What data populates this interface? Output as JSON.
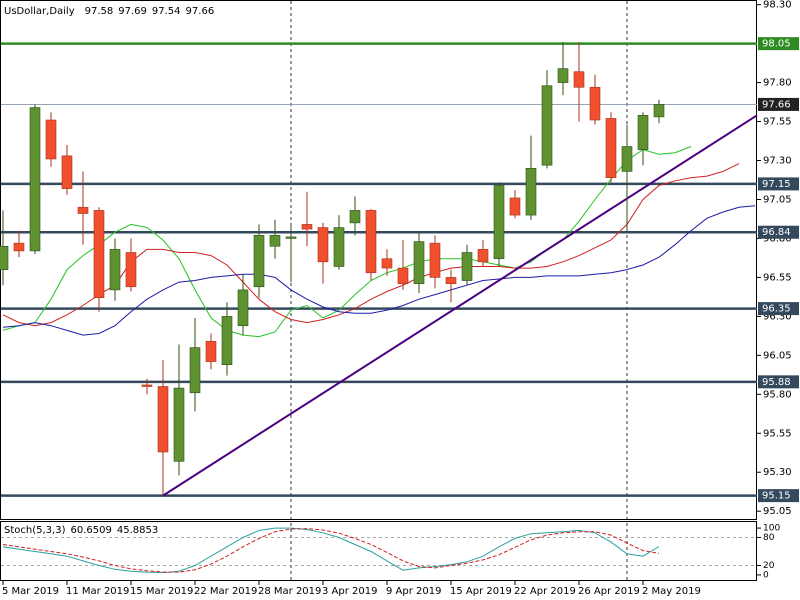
{
  "chart_data": [
    {
      "type": "candlestick",
      "title": "UsDollar,Daily",
      "categories": [
        "5 Mar 2019",
        null,
        null,
        null,
        "11 Mar 2019",
        null,
        null,
        null,
        "15 Mar 2019",
        null,
        null,
        null,
        "22 Mar 2019",
        null,
        null,
        null,
        "28 Mar 2019",
        null,
        null,
        null,
        "3 Apr 2019",
        null,
        null,
        null,
        "9 Apr 2019",
        null,
        null,
        null,
        "15 Apr 2019",
        null,
        null,
        null,
        "22 Apr 2019",
        null,
        null,
        null,
        "26 Apr 2019",
        null,
        null,
        null,
        "2 May 2019",
        null,
        null,
        null,
        null,
        null,
        null,
        null
      ],
      "open": [
        96.6,
        96.77,
        96.72,
        97.56,
        97.33,
        97.0,
        96.98,
        96.47,
        96.71,
        95.86,
        95.85,
        95.37,
        95.81,
        96.14,
        95.99,
        96.24,
        96.49,
        96.75,
        96.8,
        96.89,
        96.87,
        96.62,
        96.9,
        96.98,
        96.67,
        96.61,
        96.51,
        96.77,
        96.55,
        96.53,
        96.73,
        96.67,
        97.06,
        96.95,
        97.27,
        97.8,
        97.87,
        97.77,
        97.57,
        97.23,
        97.37,
        97.58,
        null,
        null,
        null,
        null,
        null,
        null
      ],
      "high": [
        96.98,
        96.85,
        97.66,
        97.61,
        97.4,
        97.23,
        97.0,
        96.8,
        96.8,
        95.9,
        96.02,
        96.12,
        96.29,
        96.19,
        96.39,
        96.57,
        96.89,
        96.92,
        96.88,
        97.1,
        96.9,
        96.95,
        97.07,
        96.99,
        96.73,
        96.79,
        96.84,
        96.82,
        96.6,
        96.76,
        96.79,
        97.16,
        97.11,
        97.46,
        97.88,
        98.06,
        98.06,
        97.85,
        97.61,
        97.53,
        97.61,
        97.69,
        null,
        null,
        null,
        null,
        null,
        null
      ],
      "low": [
        96.5,
        96.68,
        96.7,
        97.26,
        97.08,
        96.76,
        96.33,
        96.4,
        96.46,
        95.8,
        95.15,
        95.28,
        95.69,
        95.96,
        95.92,
        96.18,
        96.42,
        96.67,
        96.52,
        96.75,
        96.51,
        96.6,
        96.82,
        96.53,
        96.56,
        96.47,
        96.45,
        96.48,
        96.39,
        96.5,
        96.62,
        96.62,
        96.93,
        96.92,
        97.25,
        97.72,
        97.55,
        97.53,
        97.16,
        96.85,
        97.27,
        97.54,
        null,
        null,
        null,
        null,
        null,
        null
      ],
      "close": [
        96.75,
        96.72,
        97.64,
        97.31,
        97.12,
        96.96,
        96.42,
        96.73,
        96.49,
        95.85,
        95.43,
        95.84,
        96.1,
        96.01,
        96.3,
        96.47,
        96.82,
        96.82,
        96.81,
        96.86,
        96.65,
        96.87,
        96.98,
        96.58,
        96.61,
        96.51,
        96.78,
        96.55,
        96.51,
        96.71,
        96.65,
        97.14,
        96.95,
        97.25,
        97.78,
        97.89,
        97.77,
        97.56,
        97.19,
        97.39,
        97.59,
        97.66,
        null,
        null,
        null,
        null,
        null,
        null
      ],
      "up_color": "#5e9130",
      "down_color": "#f0502e",
      "lines": [
        {
          "color": "#22c322",
          "values": [
            96.21,
            96.24,
            96.26,
            96.41,
            96.6,
            96.69,
            96.76,
            96.84,
            96.89,
            96.87,
            96.79,
            96.67,
            96.47,
            96.29,
            96.21,
            96.18,
            96.17,
            96.2,
            96.34,
            96.37,
            96.29,
            96.34,
            96.44,
            96.53,
            96.58,
            96.61,
            96.65,
            96.67,
            96.67,
            96.67,
            96.65,
            96.63,
            96.61,
            96.65,
            96.73,
            96.79,
            96.91,
            97.05,
            97.18,
            97.3,
            97.37,
            97.34,
            97.35,
            97.39,
            null,
            null,
            null,
            null
          ]
        },
        {
          "color": "#d02020",
          "values": [
            96.31,
            96.26,
            96.24,
            96.26,
            96.31,
            96.37,
            96.44,
            96.5,
            96.65,
            96.73,
            96.73,
            96.71,
            96.71,
            96.69,
            96.63,
            96.52,
            96.41,
            96.33,
            96.28,
            96.26,
            96.28,
            96.31,
            96.35,
            96.41,
            96.46,
            96.5,
            96.55,
            96.58,
            96.61,
            96.62,
            96.62,
            96.62,
            96.61,
            96.61,
            96.62,
            96.65,
            96.69,
            96.74,
            96.79,
            96.89,
            97.05,
            97.14,
            97.17,
            97.19,
            97.2,
            97.23,
            97.28,
            null
          ]
        },
        {
          "color": "#1c1ca8",
          "values": [
            96.23,
            96.24,
            96.26,
            96.24,
            96.21,
            96.18,
            96.19,
            96.24,
            96.33,
            96.41,
            96.47,
            96.52,
            96.53,
            96.55,
            96.56,
            96.57,
            96.57,
            96.55,
            96.47,
            96.41,
            96.36,
            96.33,
            96.32,
            96.32,
            96.34,
            96.37,
            96.41,
            96.44,
            96.47,
            96.5,
            96.53,
            96.54,
            96.55,
            96.55,
            96.56,
            96.56,
            96.56,
            96.57,
            96.58,
            96.6,
            96.63,
            96.68,
            96.76,
            96.85,
            96.93,
            96.97,
            97.0,
            97.01
          ]
        }
      ],
      "levels": [
        98.05,
        97.15,
        96.84,
        96.35,
        95.88,
        95.15
      ],
      "level_colors": [
        "#2e8b22",
        "#34495e",
        "#34495e",
        "#34495e",
        "#34495e",
        "#34495e"
      ],
      "trendline": {
        "x": [
          10,
          47.125
        ],
        "values": [
          95.15,
          97.59
        ],
        "color": "#4b0082"
      },
      "vlines": [
        18,
        39
      ],
      "ylim": [
        95.0,
        98.33
      ],
      "yticks": [
        {
          "value": 98.3,
          "label": "98.30"
        },
        {
          "value": 97.8,
          "label": "97.80"
        },
        {
          "value": 97.55,
          "label": "97.55"
        },
        {
          "value": 97.3,
          "label": "97.30"
        },
        {
          "value": 97.05,
          "label": "97.05"
        },
        {
          "value": 96.8,
          "label": "96.80"
        },
        {
          "value": 96.55,
          "label": "96.55"
        },
        {
          "value": 96.3,
          "label": "96.30"
        },
        {
          "value": 96.05,
          "label": "96.05"
        },
        {
          "value": 95.8,
          "label": "95.80"
        },
        {
          "value": 95.55,
          "label": "95.55"
        },
        {
          "value": 95.3,
          "label": "95.30"
        },
        {
          "value": 95.05,
          "label": "95.05"
        }
      ]
    },
    {
      "type": "line",
      "title": "Stoch(5,3,3)",
      "series": [
        {
          "color": "#2aa0a0",
          "style": "solid",
          "values": [
            60,
            55,
            50,
            45,
            40,
            30,
            20,
            12,
            8,
            6,
            5,
            8,
            20,
            40,
            60,
            80,
            95,
            100,
            100,
            97,
            90,
            80,
            65,
            50,
            30,
            10,
            15,
            18,
            22,
            28,
            40,
            60,
            78,
            88,
            90,
            92,
            95,
            90,
            70,
            45,
            40,
            60.6509,
            null,
            null,
            null,
            null,
            null,
            null
          ]
        },
        {
          "color": "#d02020",
          "style": "dashed",
          "values": [
            65,
            60,
            55,
            50,
            45,
            38,
            30,
            20,
            13,
            9,
            6,
            6,
            11,
            23,
            40,
            60,
            78,
            92,
            98,
            99,
            96,
            89,
            78,
            65,
            48,
            30,
            18,
            15,
            20,
            25,
            32,
            43,
            59,
            75,
            85,
            90,
            92,
            92,
            85,
            68,
            52,
            45.8853,
            null,
            null,
            null,
            null,
            null,
            null
          ]
        }
      ],
      "levels": [
        80,
        20
      ],
      "ylim": [
        -13,
        113
      ],
      "yticks": [
        100,
        80,
        20,
        0
      ]
    }
  ]
}
